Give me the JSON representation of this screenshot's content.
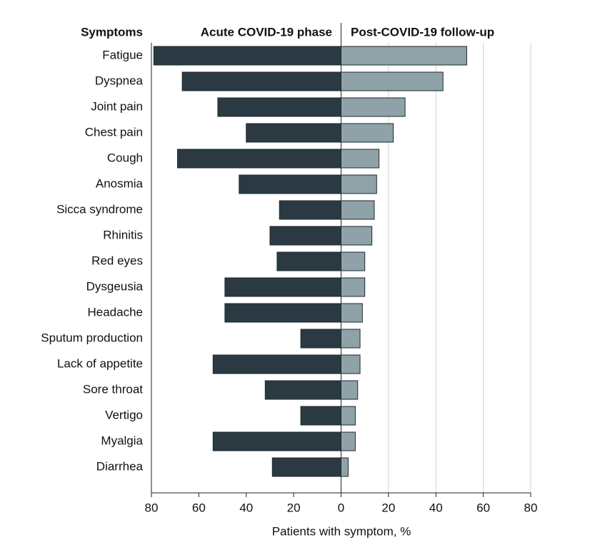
{
  "chart_data": {
    "type": "butterfly",
    "category_label": "Symptoms",
    "categories": [
      "Fatigue",
      "Dyspnea",
      "Joint pain",
      "Chest pain",
      "Cough",
      "Anosmia",
      "Sicca syndrome",
      "Rhinitis",
      "Red eyes",
      "Dysgeusia",
      "Headache",
      "Sputum production",
      "Lack of appetite",
      "Sore throat",
      "Vertigo",
      "Myalgia",
      "Diarrhea"
    ],
    "series": [
      {
        "name": "Acute COVID-19 phase",
        "color": "#2b3a42",
        "side": "left",
        "values": [
          79,
          67,
          52,
          40,
          69,
          43,
          26,
          30,
          27,
          49,
          49,
          17,
          54,
          32,
          17,
          54,
          29
        ]
      },
      {
        "name": "Post-COVID-19 follow-up",
        "color": "#8ea2a7",
        "side": "right",
        "values": [
          53,
          43,
          27,
          22,
          16,
          15,
          14,
          13,
          10,
          10,
          9,
          8,
          8,
          7,
          6,
          6,
          3
        ]
      }
    ],
    "xlabel": "Patients with symptom, %",
    "xlim": [
      -80,
      80
    ],
    "xticks": [
      {
        "value": -80,
        "label": "80"
      },
      {
        "value": -60,
        "label": "60"
      },
      {
        "value": -40,
        "label": "40"
      },
      {
        "value": -20,
        "label": "20"
      },
      0,
      20,
      40,
      60,
      80
    ],
    "grid": true
  }
}
